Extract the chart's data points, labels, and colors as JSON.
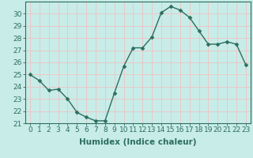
{
  "x": [
    0,
    1,
    2,
    3,
    4,
    5,
    6,
    7,
    8,
    9,
    10,
    11,
    12,
    13,
    14,
    15,
    16,
    17,
    18,
    19,
    20,
    21,
    22,
    23
  ],
  "y": [
    25.0,
    24.5,
    23.7,
    23.8,
    23.0,
    21.9,
    21.5,
    21.2,
    21.2,
    23.5,
    25.7,
    27.2,
    27.2,
    28.1,
    30.1,
    30.6,
    30.3,
    29.7,
    28.6,
    27.5,
    27.5,
    27.7,
    27.5,
    25.8
  ],
  "line_color": "#2d6e5e",
  "marker_color": "#2d6e5e",
  "bg_color": "#c8ece8",
  "grid_color": "#e8c8c8",
  "xlabel": "Humidex (Indice chaleur)",
  "ylim": [
    21,
    31
  ],
  "xlim": [
    -0.5,
    23.5
  ],
  "yticks": [
    21,
    22,
    23,
    24,
    25,
    26,
    27,
    28,
    29,
    30
  ],
  "xticks": [
    0,
    1,
    2,
    3,
    4,
    5,
    6,
    7,
    8,
    9,
    10,
    11,
    12,
    13,
    14,
    15,
    16,
    17,
    18,
    19,
    20,
    21,
    22,
    23
  ],
  "tick_color": "#2d6e5e",
  "xlabel_fontsize": 7.5,
  "tick_fontsize": 6.5,
  "linewidth": 1.0,
  "markersize": 2.5
}
